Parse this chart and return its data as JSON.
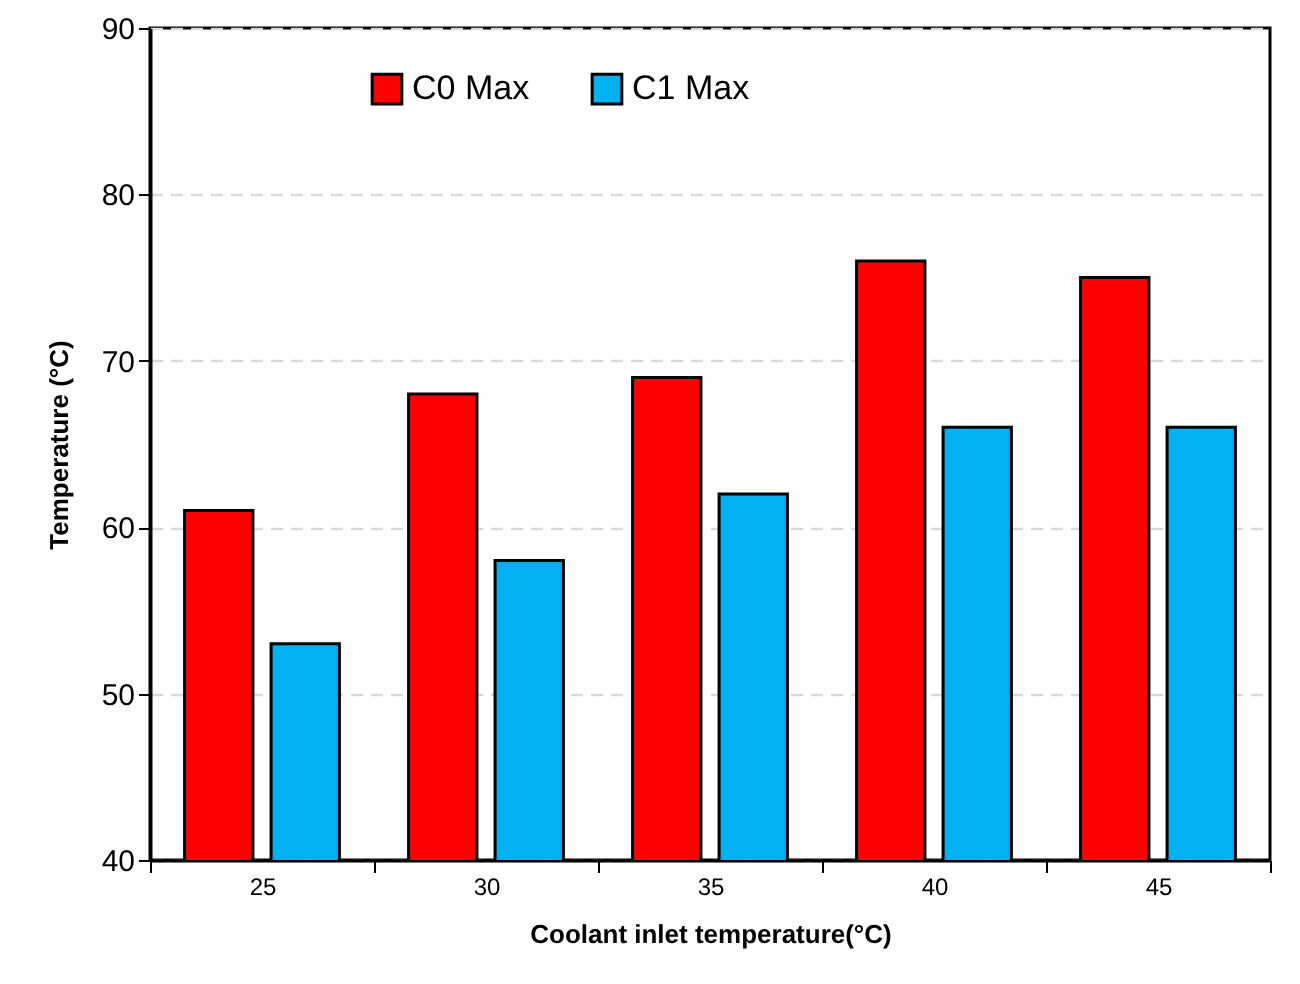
{
  "chart_data": {
    "type": "bar",
    "xlabel": "Coolant inlet temperature(°C)",
    "ylabel": "Temperature (°C)",
    "categories": [
      "25",
      "30",
      "35",
      "40",
      "45"
    ],
    "series": [
      {
        "name": "C0 Max",
        "color": "#ff0000",
        "values": [
          61,
          68,
          69,
          76,
          75
        ]
      },
      {
        "name": "C1 Max",
        "color": "#00b0f0",
        "values": [
          53,
          58,
          62,
          66,
          66
        ]
      }
    ],
    "ylim": [
      40,
      90
    ],
    "yticks": [
      40,
      50,
      60,
      70,
      80,
      90
    ],
    "grid": "y",
    "legend": "top left"
  }
}
